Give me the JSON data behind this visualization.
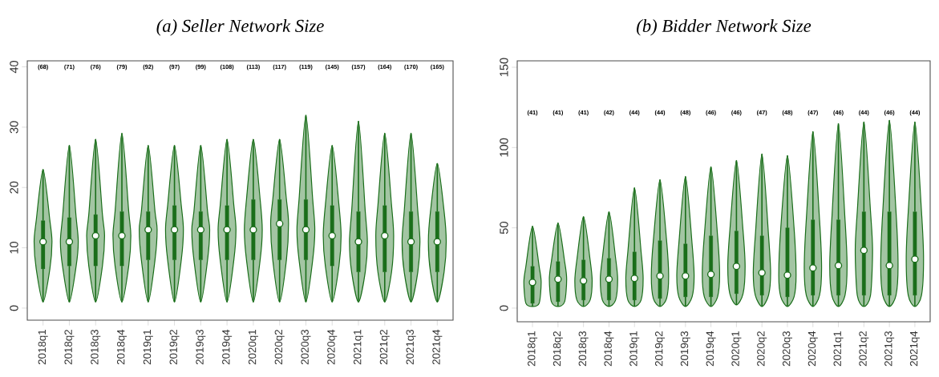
{
  "chart_data": [
    {
      "type": "box",
      "title": "(a) Seller Network Size",
      "categories": [
        "2018q1",
        "2018q2",
        "2018q3",
        "2018q4",
        "2019q1",
        "2019q2",
        "2019q3",
        "2019q4",
        "2020q1",
        "2020q2",
        "2020q3",
        "2020q4",
        "2021q1",
        "2021q2",
        "2021q3",
        "2021q4"
      ],
      "boxes": [
        {
          "low": 1,
          "q1": 6.5,
          "median": 11,
          "q3": 14.5,
          "high": 23
        },
        {
          "low": 1,
          "q1": 7,
          "median": 11,
          "q3": 15,
          "high": 27
        },
        {
          "low": 1,
          "q1": 7,
          "median": 12,
          "q3": 15.5,
          "high": 28
        },
        {
          "low": 1,
          "q1": 7,
          "median": 12,
          "q3": 16,
          "high": 29
        },
        {
          "low": 1,
          "q1": 8,
          "median": 13,
          "q3": 16,
          "high": 27
        },
        {
          "low": 1,
          "q1": 8,
          "median": 13,
          "q3": 17,
          "high": 27
        },
        {
          "low": 1,
          "q1": 8,
          "median": 13,
          "q3": 16,
          "high": 27
        },
        {
          "low": 1,
          "q1": 8,
          "median": 13,
          "q3": 17,
          "high": 28
        },
        {
          "low": 1,
          "q1": 8,
          "median": 13,
          "q3": 18,
          "high": 28
        },
        {
          "low": 1,
          "q1": 8,
          "median": 14,
          "q3": 18,
          "high": 28
        },
        {
          "low": 1,
          "q1": 8,
          "median": 13,
          "q3": 18,
          "high": 32
        },
        {
          "low": 1,
          "q1": 7,
          "median": 12,
          "q3": 17,
          "high": 27
        },
        {
          "low": 1,
          "q1": 6,
          "median": 11,
          "q3": 16,
          "high": 31
        },
        {
          "low": 1,
          "q1": 6,
          "median": 12,
          "q3": 17,
          "high": 29
        },
        {
          "low": 1,
          "q1": 6,
          "median": 11,
          "q3": 16,
          "high": 29
        },
        {
          "low": 1,
          "q1": 6,
          "median": 11,
          "q3": 16,
          "high": 24
        }
      ],
      "color": "#1a6e1a",
      "ylim": [
        -2,
        41
      ],
      "yticks": [
        0,
        10,
        20,
        30,
        40
      ],
      "annotations": [
        "(68)",
        "(71)",
        "(76)",
        "(79)",
        "(92)",
        "(97)",
        "(99)",
        "(108)",
        "(113)",
        "(117)",
        "(119)",
        "(145)",
        "(157)",
        "(164)",
        "(170)",
        "(165)"
      ]
    },
    {
      "type": "box",
      "title": "(b) Bidder Network Size",
      "categories": [
        "2018q1",
        "2018q2",
        "2018q3",
        "2018q4",
        "2019q1",
        "2019q2",
        "2019q3",
        "2019q4",
        "2020q1",
        "2020q2",
        "2020q3",
        "2020q4",
        "2021q1",
        "2021q2",
        "2021q3",
        "2021q4"
      ],
      "boxes": [
        {
          "low": 1,
          "q1": 3,
          "median": 16,
          "q3": 26,
          "high": 51
        },
        {
          "low": 1,
          "q1": 4,
          "median": 18,
          "q3": 29,
          "high": 53
        },
        {
          "low": 1,
          "q1": 5,
          "median": 17,
          "q3": 30,
          "high": 57
        },
        {
          "low": 1,
          "q1": 5,
          "median": 18,
          "q3": 31,
          "high": 60
        },
        {
          "low": 1,
          "q1": 5,
          "median": 18.5,
          "q3": 35,
          "high": 75
        },
        {
          "low": 1,
          "q1": 6,
          "median": 20,
          "q3": 42,
          "high": 80
        },
        {
          "low": 1,
          "q1": 7,
          "median": 20,
          "q3": 40,
          "high": 82
        },
        {
          "low": 1,
          "q1": 7,
          "median": 21,
          "q3": 45,
          "high": 88
        },
        {
          "low": 2,
          "q1": 9,
          "median": 26,
          "q3": 48,
          "high": 92
        },
        {
          "low": 1,
          "q1": 8,
          "median": 22,
          "q3": 45,
          "high": 96
        },
        {
          "low": 1,
          "q1": 7,
          "median": 20.5,
          "q3": 50,
          "high": 95
        },
        {
          "low": 1,
          "q1": 8,
          "median": 25,
          "q3": 55,
          "high": 110
        },
        {
          "low": 1,
          "q1": 8,
          "median": 26.5,
          "q3": 55,
          "high": 115
        },
        {
          "low": 1,
          "q1": 8,
          "median": 36,
          "q3": 60,
          "high": 116
        },
        {
          "low": 1,
          "q1": 8,
          "median": 26.5,
          "q3": 60,
          "high": 117
        },
        {
          "low": 1,
          "q1": 8,
          "median": 30.5,
          "q3": 60,
          "high": 116
        }
      ],
      "color": "#1a6e1a",
      "ylim": [
        -8.5,
        154
      ],
      "yticks": [
        0,
        50,
        100,
        150
      ],
      "annotations": [
        "(41)",
        "(41)",
        "(41)",
        "(42)",
        "(44)",
        "(44)",
        "(48)",
        "(46)",
        "(46)",
        "(47)",
        "(48)",
        "(47)",
        "(46)",
        "(44)",
        "(46)",
        "(44)"
      ]
    }
  ]
}
